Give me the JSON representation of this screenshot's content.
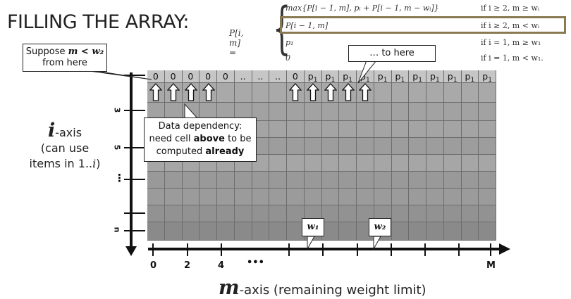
{
  "title": "FILLING THE ARRAY:",
  "formula": {
    "lhs": "P[i, m] =",
    "cases": [
      {
        "expr": "max{P[i − 1, m], pᵢ + P[i − 1, m − wᵢ]}",
        "cond": "if i ≥ 2, m ≥ wᵢ"
      },
      {
        "expr": "P[i − 1, m]",
        "cond": "if i ≥ 2, m < wᵢ"
      },
      {
        "expr": "p₁",
        "cond": "if i = 1, m ≥ w₁"
      },
      {
        "expr": "0",
        "cond": "if i = 1, m < w₁."
      }
    ],
    "highlight_color": "#8a7a52"
  },
  "callouts": {
    "suppose": {
      "text": "Suppose",
      "math": "m < w₂",
      "line2": "from here"
    },
    "to_here": {
      "text": "… to here"
    },
    "dependency": {
      "line1": "Data dependency:",
      "line2": "need cell",
      "bold1": "above",
      "line2b": "to be",
      "line3": "computed",
      "bold2": "already"
    }
  },
  "grid": {
    "first_row": [
      "0",
      "0",
      "0",
      "0",
      "0",
      "..",
      "..",
      "..",
      "0",
      "p",
      "p",
      "p",
      "p",
      "p",
      "p",
      "p",
      "p",
      "p",
      "p",
      "p"
    ],
    "first_row_subscript": [
      "",
      "",
      "",
      "",
      "",
      "",
      "",
      "",
      "",
      "1",
      "1",
      "1",
      "1",
      "1",
      "1",
      "1",
      "1",
      "1",
      "1",
      "1"
    ],
    "row_shades": [
      "#b9b9b9",
      "#a9a9a9",
      "#a2a2a2",
      "#a4a4a4",
      "#9d9d9d",
      "#a6a6a6",
      "#999999",
      "#9b9b9b",
      "#929292",
      "#8a8a8a"
    ],
    "up_arrow_columns": [
      0,
      1,
      2,
      3,
      8,
      9,
      10,
      11,
      12
    ]
  },
  "w_labels": {
    "w1": "w₁",
    "w2": "w₂"
  },
  "i_axis": {
    "symbol": "i",
    "suffix": "-axis",
    "line2": "(can use",
    "line3": "items in 1..",
    "line3_var": "i",
    "line3_end": ")",
    "row_labels": [
      "3",
      "5",
      "⋮",
      "n"
    ]
  },
  "m_axis": {
    "symbol": "m",
    "suffix": "-axis (remaining weight limit)",
    "tick_labels": [
      "0",
      "2",
      "4",
      "•••",
      "M"
    ]
  },
  "colors": {
    "axis": "#111111",
    "grid_line": "#6d6d6d",
    "first_row": "#c6c6c6"
  }
}
